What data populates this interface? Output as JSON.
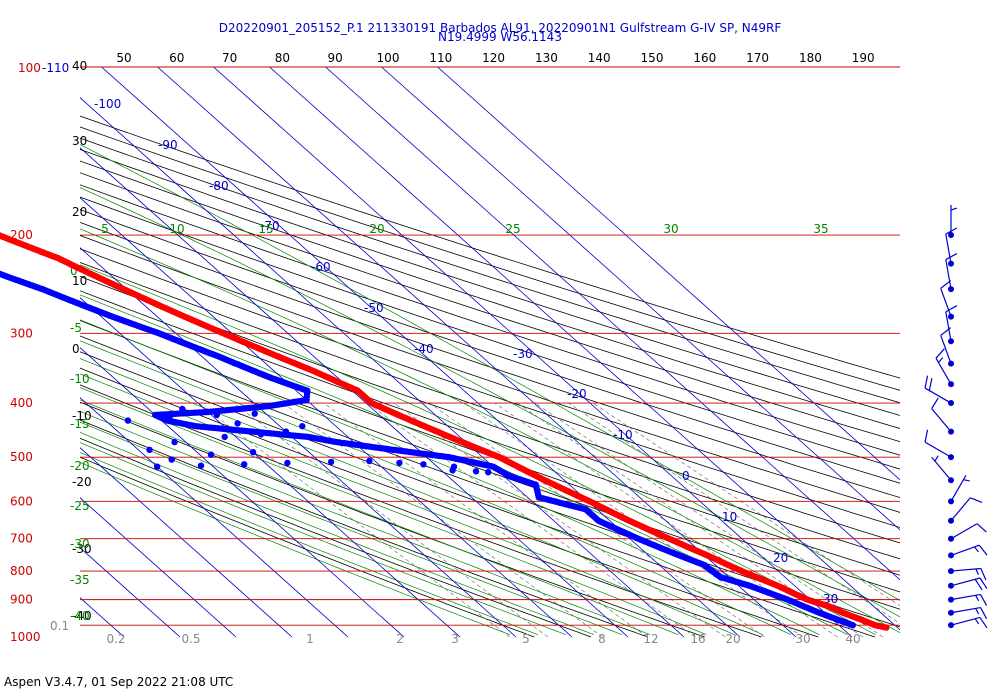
{
  "header": {
    "title_line1": "D20220901_205152_P.1 211330191 Barbados AL91, 20220901N1 Gulfstream G-IV SP, N49RF",
    "title_line2": "N19.4999 W56.1143"
  },
  "footer": {
    "version": "Aspen V3.4.7, 01 Sep 2022  21:08 UTC"
  },
  "colors": {
    "isobar": "#cc0000",
    "isotherm": "#0000cc",
    "dry_adiabat": "#000000",
    "moist_adiabat": "#008800",
    "mixing_ratio": "#777777",
    "temperature": "#ff0000",
    "dewpoint": "#0000ff",
    "wind": "#0000cc"
  },
  "chart_data": {
    "type": "skew-t",
    "pressure_levels": [
      1000,
      900,
      800,
      700,
      600,
      500,
      400,
      300,
      200
    ],
    "top_pressure_label": "100",
    "top_pressure_label_extra": "-110",
    "theta_top_labels": [
      "50",
      "60",
      "70",
      "80",
      "90",
      "100",
      "110",
      "120",
      "130",
      "140",
      "150",
      "160",
      "170",
      "180",
      "190"
    ],
    "theta_left_labels": [
      "40",
      "30",
      "20",
      "10",
      "0",
      "-10",
      "-20",
      "-30",
      "-40"
    ],
    "isotherm_labels": [
      "-100",
      "-90",
      "-80",
      "-70",
      "-60",
      "-50",
      "-40",
      "-30",
      "-20",
      "-10",
      "0",
      "10",
      "20",
      "30"
    ],
    "moist_top_labels": [
      "5",
      "10",
      "15",
      "20",
      "25",
      "30",
      "35"
    ],
    "moist_left_labels": [
      "0",
      "-5",
      "-10",
      "-15",
      "-20",
      "-25",
      "-30",
      "-35",
      "-40"
    ],
    "mixing_ratio_labels": [
      "0.1",
      "0.2",
      "0.5",
      "1",
      "2",
      "3",
      "5",
      "8",
      "12",
      "16",
      "20",
      "30",
      "40"
    ],
    "temperature_profile": [
      {
        "p": 1010,
        "t": 28.0
      },
      {
        "p": 1000,
        "t": 26.5
      },
      {
        "p": 975,
        "t": 25.0
      },
      {
        "p": 950,
        "t": 23.2
      },
      {
        "p": 925,
        "t": 22.0
      },
      {
        "p": 900,
        "t": 19.5
      },
      {
        "p": 850,
        "t": 17.0
      },
      {
        "p": 800,
        "t": 13.5
      },
      {
        "p": 750,
        "t": 10.5
      },
      {
        "p": 700,
        "t": 7.0
      },
      {
        "p": 650,
        "t": 3.5
      },
      {
        "p": 600,
        "t": 0.3
      },
      {
        "p": 550,
        "t": -3.5
      },
      {
        "p": 500,
        "t": -7.0
      },
      {
        "p": 450,
        "t": -13.0
      },
      {
        "p": 400,
        "t": -19.0
      },
      {
        "p": 380,
        "t": -19.0
      },
      {
        "p": 350,
        "t": -23.0
      },
      {
        "p": 300,
        "t": -31.5
      },
      {
        "p": 250,
        "t": -40.5
      },
      {
        "p": 220,
        "t": -46.0
      },
      {
        "p": 200,
        "t": -52.0
      },
      {
        "p": 180,
        "t": -56.0
      }
    ],
    "dewpoint_profile": [
      {
        "p": 1000,
        "t": 22.5
      },
      {
        "p": 950,
        "t": 19.0
      },
      {
        "p": 900,
        "t": 16.0
      },
      {
        "p": 850,
        "t": 12.0
      },
      {
        "p": 820,
        "t": 8.5
      },
      {
        "p": 780,
        "t": 8.0
      },
      {
        "p": 750,
        "t": 5.5
      },
      {
        "p": 700,
        "t": 1.5
      },
      {
        "p": 650,
        "t": -2.0
      },
      {
        "p": 620,
        "t": -2.0
      },
      {
        "p": 590,
        "t": -8.0
      },
      {
        "p": 560,
        "t": -6.0
      },
      {
        "p": 540,
        "t": -9.0
      },
      {
        "p": 520,
        "t": -10.0
      },
      {
        "p": 500,
        "t": -16.0
      },
      {
        "p": 470,
        "t": -33.0
      },
      {
        "p": 460,
        "t": -37.0
      },
      {
        "p": 440,
        "t": -55.0
      },
      {
        "p": 430,
        "t": -59.0
      },
      {
        "p": 420,
        "t": -60.0
      },
      {
        "p": 415,
        "t": -50.0
      },
      {
        "p": 405,
        "t": -38.0
      },
      {
        "p": 395,
        "t": -30.0
      },
      {
        "p": 380,
        "t": -28.0
      },
      {
        "p": 360,
        "t": -32.0
      },
      {
        "p": 330,
        "t": -37.0
      },
      {
        "p": 300,
        "t": -43.0
      },
      {
        "p": 280,
        "t": -48.0
      },
      {
        "p": 250,
        "t": -55.0
      },
      {
        "p": 220,
        "t": -64.0
      }
    ],
    "dewpoint_scatter": [
      {
        "p": 520,
        "t": -70.0
      },
      {
        "p": 518,
        "t": -62.0
      },
      {
        "p": 515,
        "t": -54.0
      },
      {
        "p": 512,
        "t": -46.0
      },
      {
        "p": 510,
        "t": -38.0
      },
      {
        "p": 508,
        "t": -31.0
      },
      {
        "p": 512,
        "t": -26.0
      },
      {
        "p": 515,
        "t": -22.0
      },
      {
        "p": 520,
        "t": -17.0
      },
      {
        "p": 505,
        "t": -66.0
      },
      {
        "p": 495,
        "t": -58.0
      },
      {
        "p": 490,
        "t": -50.0
      },
      {
        "p": 485,
        "t": -68.0
      },
      {
        "p": 470,
        "t": -62.0
      },
      {
        "p": 460,
        "t": -52.0
      },
      {
        "p": 455,
        "t": -45.0
      },
      {
        "p": 450,
        "t": -40.0
      },
      {
        "p": 440,
        "t": -36.0
      },
      {
        "p": 435,
        "t": -47.0
      },
      {
        "p": 430,
        "t": -66.0
      },
      {
        "p": 425,
        "t": -58.0
      },
      {
        "p": 420,
        "t": -49.0
      },
      {
        "p": 418,
        "t": -42.0
      },
      {
        "p": 410,
        "t": -54.0
      },
      {
        "p": 530,
        "t": -14.0
      },
      {
        "p": 532,
        "t": -12.0
      },
      {
        "p": 528,
        "t": -18.0
      }
    ],
    "wind_barbs": [
      {
        "p": 1000,
        "dir": 75,
        "spd": 15
      },
      {
        "p": 950,
        "dir": 80,
        "spd": 15
      },
      {
        "p": 900,
        "dir": 80,
        "spd": 15
      },
      {
        "p": 850,
        "dir": 75,
        "spd": 20
      },
      {
        "p": 800,
        "dir": 85,
        "spd": 15
      },
      {
        "p": 750,
        "dir": 70,
        "spd": 15
      },
      {
        "p": 700,
        "dir": 60,
        "spd": 10
      },
      {
        "p": 650,
        "dir": 40,
        "spd": 10
      },
      {
        "p": 600,
        "dir": 30,
        "spd": 5
      },
      {
        "p": 550,
        "dir": 320,
        "spd": 5
      },
      {
        "p": 500,
        "dir": 300,
        "spd": 10
      },
      {
        "p": 450,
        "dir": 320,
        "spd": 10
      },
      {
        "p": 400,
        "dir": 300,
        "spd": 20
      },
      {
        "p": 370,
        "dir": 330,
        "spd": 15
      },
      {
        "p": 340,
        "dir": 340,
        "spd": 10
      },
      {
        "p": 310,
        "dir": 350,
        "spd": 10
      },
      {
        "p": 280,
        "dir": 340,
        "spd": 10
      },
      {
        "p": 250,
        "dir": 350,
        "spd": 10
      },
      {
        "p": 225,
        "dir": 350,
        "spd": 10
      },
      {
        "p": 200,
        "dir": 0,
        "spd": 5
      }
    ]
  }
}
